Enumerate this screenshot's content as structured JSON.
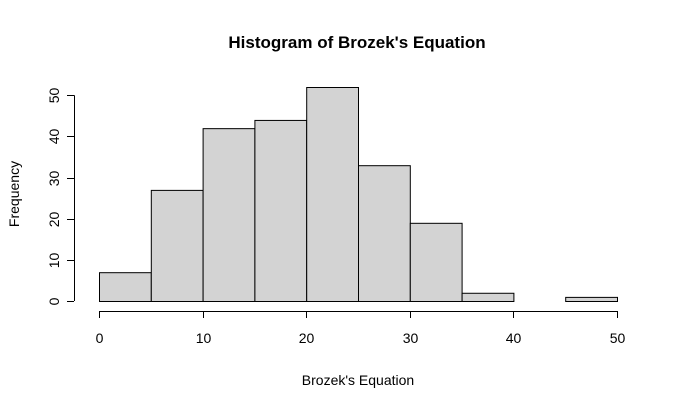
{
  "chart_data": {
    "type": "bar",
    "title": "Histogram of Brozek's Equation",
    "xlabel": "Brozek's Equation",
    "ylabel": "Frequency",
    "bins": [
      {
        "start": 0,
        "end": 5,
        "count": 7
      },
      {
        "start": 5,
        "end": 10,
        "count": 27
      },
      {
        "start": 10,
        "end": 15,
        "count": 42
      },
      {
        "start": 15,
        "end": 20,
        "count": 44
      },
      {
        "start": 20,
        "end": 25,
        "count": 52
      },
      {
        "start": 25,
        "end": 30,
        "count": 33
      },
      {
        "start": 30,
        "end": 35,
        "count": 19
      },
      {
        "start": 35,
        "end": 40,
        "count": 2
      },
      {
        "start": 40,
        "end": 45,
        "count": 0
      },
      {
        "start": 45,
        "end": 50,
        "count": 1
      }
    ],
    "xlim": [
      0,
      50
    ],
    "ylim": [
      0,
      52
    ],
    "x_ticks": [
      "0",
      "10",
      "20",
      "30",
      "40",
      "50"
    ],
    "y_ticks": [
      "0",
      "10",
      "20",
      "30",
      "40",
      "50"
    ],
    "bar_color": "#d3d3d3",
    "edge_color": "#000000",
    "grid": false
  }
}
